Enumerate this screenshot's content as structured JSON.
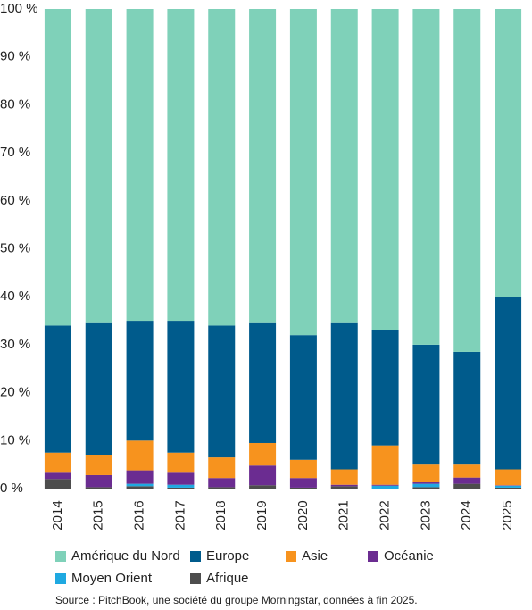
{
  "chart_data": {
    "type": "stacked_bar",
    "categories": [
      "2014",
      "2015",
      "2016",
      "2017",
      "2018",
      "2019",
      "2020",
      "2021",
      "2022",
      "2023",
      "2024",
      "2025"
    ],
    "series": [
      {
        "name": "Amérique du Nord",
        "color": "#7fd1b9",
        "values": [
          66,
          65.5,
          65,
          65,
          66,
          65.5,
          68,
          65.5,
          67,
          70,
          71.5,
          60
        ]
      },
      {
        "name": "Europe",
        "color": "#005b8c",
        "values": [
          26.5,
          27.5,
          25,
          27.5,
          27.5,
          25,
          26,
          30.5,
          24,
          25,
          23.5,
          36
        ]
      },
      {
        "name": "Asie",
        "color": "#f7931e",
        "values": [
          4.2,
          4.2,
          6.2,
          4.2,
          4.3,
          4.7,
          3.8,
          3.2,
          8.2,
          3.7,
          2.7,
          3.3
        ]
      },
      {
        "name": "Océanie",
        "color": "#6b2c91",
        "values": [
          1.3,
          2.5,
          2.8,
          2.5,
          1.9,
          4.1,
          2.0,
          0.3,
          0.2,
          0.3,
          1.3,
          0.1
        ]
      },
      {
        "name": "Moyen Orient",
        "color": "#1fa9e1",
        "values": [
          0,
          0,
          0.5,
          0.6,
          0,
          0,
          0,
          0,
          0.6,
          0.7,
          0,
          0.4
        ]
      },
      {
        "name": "Afrique",
        "color": "#4d4d4d",
        "values": [
          2,
          0.3,
          0.5,
          0.2,
          0.3,
          0.7,
          0.2,
          0.5,
          0,
          0.3,
          1.0,
          0.2
        ]
      }
    ],
    "ylim": [
      0,
      100
    ],
    "yticks": [
      {
        "value": 0,
        "label": "0 %"
      },
      {
        "value": 10,
        "label": "10 %"
      },
      {
        "value": 20,
        "label": "20 %"
      },
      {
        "value": 30,
        "label": "30 %"
      },
      {
        "value": 40,
        "label": "40 %"
      },
      {
        "value": 50,
        "label": "50 %"
      },
      {
        "value": 60,
        "label": "60 %"
      },
      {
        "value": 70,
        "label": "70 %"
      },
      {
        "value": 80,
        "label": "80 %"
      },
      {
        "value": 90,
        "label": "90 %"
      },
      {
        "value": 100,
        "label": "100 %"
      }
    ],
    "source": "Source : PitchBook, une société du groupe Morningstar, données à fin 2025."
  }
}
